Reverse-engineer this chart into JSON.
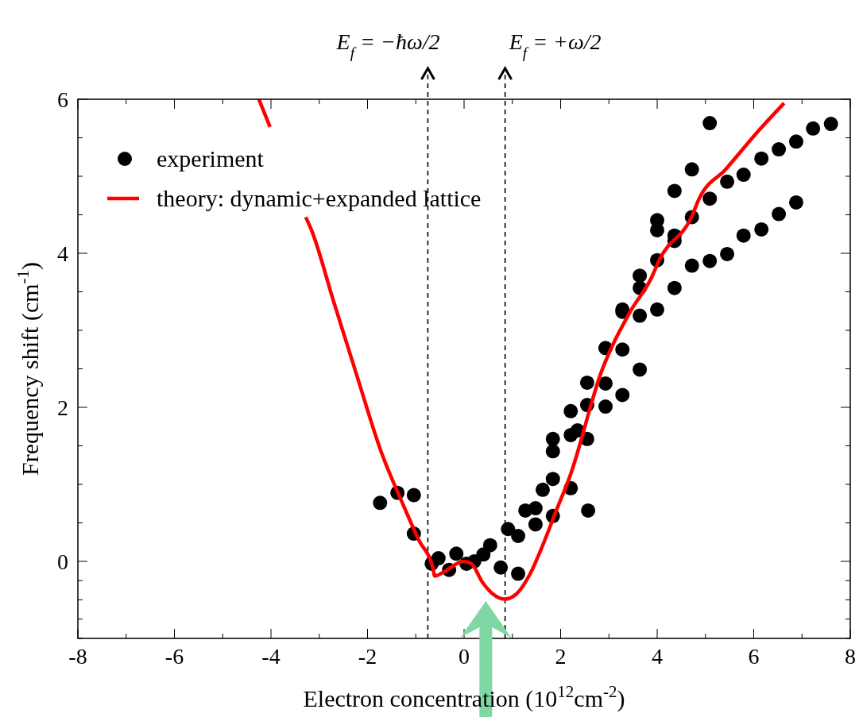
{
  "chart_data": {
    "type": "scatter",
    "xlabel": "Electron concentration (10$^{12}$cm$^{-2}$)",
    "ylabel": "Frequency shift (cm$^{-1}$)",
    "xlim": [
      -8,
      8
    ],
    "xticks": [
      -8,
      -6,
      -4,
      -2,
      0,
      2,
      4,
      6,
      8
    ],
    "ylim": [
      -1,
      6
    ],
    "yticks": [
      0,
      2,
      4,
      6
    ],
    "grid": false,
    "legend": "top left",
    "series": [
      {
        "name": "experiment",
        "color": "#000000",
        "marker": "circle",
        "x": [
          -1.74,
          -1.38,
          -1.04,
          -1.04,
          -0.67,
          -0.53,
          -0.31,
          -0.16,
          0.05,
          0.21,
          0.4,
          0.54,
          0.76,
          0.91,
          1.12,
          1.12,
          1.27,
          1.48,
          1.48,
          1.63,
          1.84,
          1.84,
          1.84,
          1.84,
          2.21,
          2.21,
          2.21,
          2.35,
          2.55,
          2.55,
          2.55,
          2.57,
          2.93,
          2.93,
          2.93,
          3.28,
          3.28,
          3.28,
          3.28,
          3.64,
          3.64,
          3.64,
          3.64,
          4.0,
          4.0,
          4.0,
          4.0,
          4.36,
          4.36,
          4.36,
          4.36,
          4.72,
          4.72,
          4.72,
          5.09,
          5.09,
          5.09,
          5.45,
          5.45,
          5.79,
          5.79,
          6.16,
          6.16,
          6.52,
          6.52,
          6.88,
          6.88,
          7.23,
          7.6
        ],
        "values": [
          0.76,
          0.89,
          0.86,
          0.36,
          -0.03,
          0.04,
          -0.11,
          0.1,
          -0.03,
          0.0,
          0.09,
          0.21,
          -0.08,
          0.42,
          0.33,
          -0.16,
          0.66,
          0.69,
          0.48,
          0.93,
          1.07,
          0.59,
          1.43,
          1.59,
          0.95,
          1.95,
          1.64,
          1.7,
          1.59,
          2.03,
          2.32,
          0.66,
          2.31,
          2.01,
          2.77,
          2.75,
          2.16,
          3.27,
          3.24,
          2.49,
          3.19,
          3.55,
          3.71,
          3.27,
          3.91,
          4.43,
          4.3,
          4.23,
          4.16,
          3.55,
          4.81,
          3.84,
          4.47,
          5.09,
          3.9,
          4.71,
          5.69,
          3.99,
          4.93,
          5.02,
          4.23,
          5.23,
          4.31,
          5.35,
          4.51,
          5.45,
          4.66,
          5.62,
          5.68
        ]
      },
      {
        "name": "theory: dynamic+expanded lattice",
        "type": "line",
        "color": "#ff0000",
        "line_style": "solid",
        "marker": "none",
        "x": [
          -4.25,
          -4.02,
          -3.6,
          -3.28,
          -3.16,
          -2.7,
          -2.21,
          -1.71,
          -1.3,
          -0.94,
          -0.64,
          -0.61,
          -0.4,
          -0.02,
          0.15,
          0.38,
          0.59,
          0.84,
          1.09,
          1.37,
          1.63,
          1.91,
          2.19,
          2.85,
          3.44,
          3.88,
          4.05,
          4.71,
          4.87,
          5.42,
          6.07,
          6.63
        ],
        "values": [
          6,
          5.64,
          null,
          4.47,
          4.3,
          3.37,
          2.39,
          1.41,
          0.79,
          0.28,
          -0.1,
          -0.19,
          -0.13,
          0.0,
          -0.03,
          -0.27,
          -0.42,
          -0.49,
          -0.42,
          -0.16,
          0.21,
          0.66,
          1.1,
          2.47,
          3.24,
          3.68,
          3.92,
          4.47,
          4.71,
          5.09,
          5.57,
          5.95
        ]
      }
    ],
    "ref_lines": [
      {
        "axis": "x",
        "value": -0.75,
        "label": "E$_{f}$ = −ħω/2",
        "color": "#000000",
        "line_style": "dashed"
      },
      {
        "axis": "x",
        "value": 0.85,
        "label": "E$_{f}$ = +ω/2",
        "color": "#000000",
        "line_style": "dashed"
      }
    ]
  }
}
